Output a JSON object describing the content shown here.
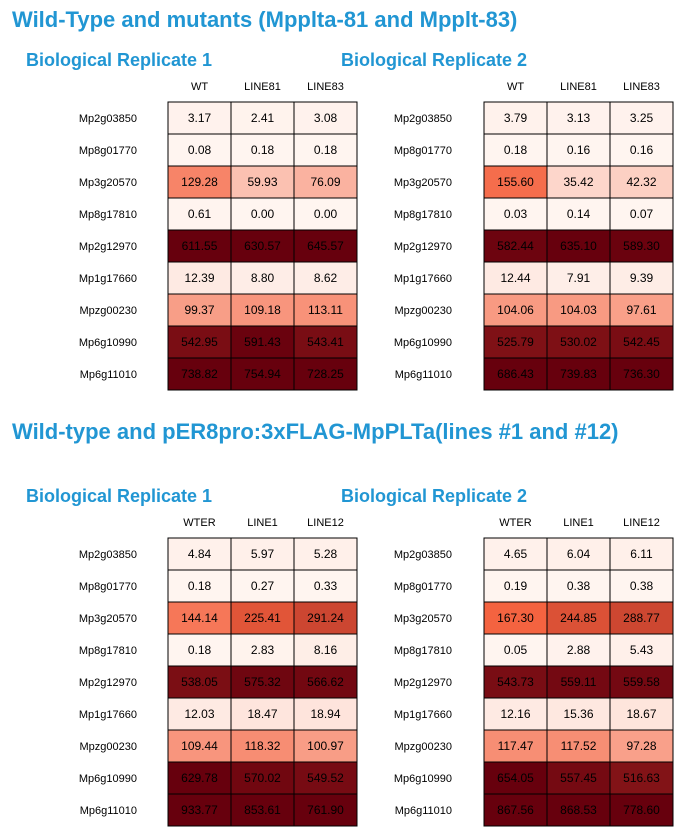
{
  "sections": [
    {
      "title": "Wild-Type and mutants (Mpplta-81 and Mpplt-83)",
      "replicates": [
        "Biological Replicate 1",
        "Biological Replicate 2"
      ]
    },
    {
      "title": "Wild-type and pER8pro:3xFLAG-MpPLTa(lines #1 and #12)",
      "replicates": [
        "Biological Replicate 1",
        "Biological Replicate 2"
      ]
    }
  ],
  "chart_data": [
    {
      "type": "heatmap",
      "title": "Biological Replicate 1",
      "columns": [
        "WT",
        "LINE81",
        "LINE83"
      ],
      "rows": [
        "Mp2g03850",
        "Mp8g01770",
        "Mp3g20570",
        "Mp8g17810",
        "Mp2g12970",
        "Mp1g17660",
        "Mpzg00230",
        "Mp6g10990",
        "Mp6g11010"
      ],
      "values": [
        [
          "3.17",
          "2.41",
          "3.08"
        ],
        [
          "0.08",
          "0.18",
          "0.18"
        ],
        [
          "129.28",
          "59.93",
          "76.09"
        ],
        [
          "0.61",
          "0.00",
          "0.00"
        ],
        [
          "611.55",
          "630.57",
          "645.57"
        ],
        [
          "12.39",
          "8.80",
          "8.62"
        ],
        [
          "99.37",
          "109.18",
          "113.11"
        ],
        [
          "542.95",
          "591.43",
          "543.41"
        ],
        [
          "738.82",
          "754.94",
          "728.25"
        ]
      ],
      "colors": {
        "low": "#fff5f0",
        "mid": "#f4623f",
        "high": "#67000d"
      }
    },
    {
      "type": "heatmap",
      "title": "Biological Replicate 2",
      "columns": [
        "WT",
        "LINE81",
        "LINE83"
      ],
      "rows": [
        "Mp2g03850",
        "Mp8g01770",
        "Mp3g20570",
        "Mp8g17810",
        "Mp2g12970",
        "Mp1g17660",
        "Mpzg00230",
        "Mp6g10990",
        "Mp6g11010"
      ],
      "values": [
        [
          "3.79",
          "3.13",
          "3.25"
        ],
        [
          "0.18",
          "0.16",
          "0.16"
        ],
        [
          "155.60",
          "35.42",
          "42.32"
        ],
        [
          "0.03",
          "0.14",
          "0.07"
        ],
        [
          "582.44",
          "635.10",
          "589.30"
        ],
        [
          "12.44",
          "7.91",
          "9.39"
        ],
        [
          "104.06",
          "104.03",
          "97.61"
        ],
        [
          "525.79",
          "530.02",
          "542.45"
        ],
        [
          "686.43",
          "739.83",
          "736.30"
        ]
      ],
      "colors": {
        "low": "#fff5f0",
        "mid": "#f4623f",
        "high": "#67000d"
      }
    },
    {
      "type": "heatmap",
      "title": "Biological Replicate 1",
      "columns": [
        "WTER",
        "LINE1",
        "LINE12"
      ],
      "rows": [
        "Mp2g03850",
        "Mp8g01770",
        "Mp3g20570",
        "Mp8g17810",
        "Mp2g12970",
        "Mp1g17660",
        "Mpzg00230",
        "Mp6g10990",
        "Mp6g11010"
      ],
      "values": [
        [
          "4.84",
          "5.97",
          "5.28"
        ],
        [
          "0.18",
          "0.27",
          "0.33"
        ],
        [
          "144.14",
          "225.41",
          "291.24"
        ],
        [
          "0.18",
          "2.83",
          "8.16"
        ],
        [
          "538.05",
          "575.32",
          "566.62"
        ],
        [
          "12.03",
          "18.47",
          "18.94"
        ],
        [
          "109.44",
          "118.32",
          "100.97"
        ],
        [
          "629.78",
          "570.02",
          "549.52"
        ],
        [
          "933.77",
          "853.61",
          "761.90"
        ]
      ],
      "colors": {
        "low": "#fff5f0",
        "mid": "#f4623f",
        "high": "#67000d"
      }
    },
    {
      "type": "heatmap",
      "title": "Biological Replicate 2",
      "columns": [
        "WTER",
        "LINE1",
        "LINE12"
      ],
      "rows": [
        "Mp2g03850",
        "Mp8g01770",
        "Mp3g20570",
        "Mp8g17810",
        "Mp2g12970",
        "Mp1g17660",
        "Mpzg00230",
        "Mp6g10990",
        "Mp6g11010"
      ],
      "values": [
        [
          "4.65",
          "6.04",
          "6.11"
        ],
        [
          "0.19",
          "0.38",
          "0.38"
        ],
        [
          "167.30",
          "244.85",
          "288.77"
        ],
        [
          "0.05",
          "2.88",
          "5.43"
        ],
        [
          "543.73",
          "559.11",
          "559.58"
        ],
        [
          "12.16",
          "15.36",
          "18.67"
        ],
        [
          "117.47",
          "117.52",
          "97.28"
        ],
        [
          "654.05",
          "557.45",
          "516.63"
        ],
        [
          "867.56",
          "868.53",
          "778.60"
        ]
      ],
      "colors": {
        "low": "#fff5f0",
        "mid": "#f4623f",
        "high": "#67000d"
      }
    }
  ]
}
